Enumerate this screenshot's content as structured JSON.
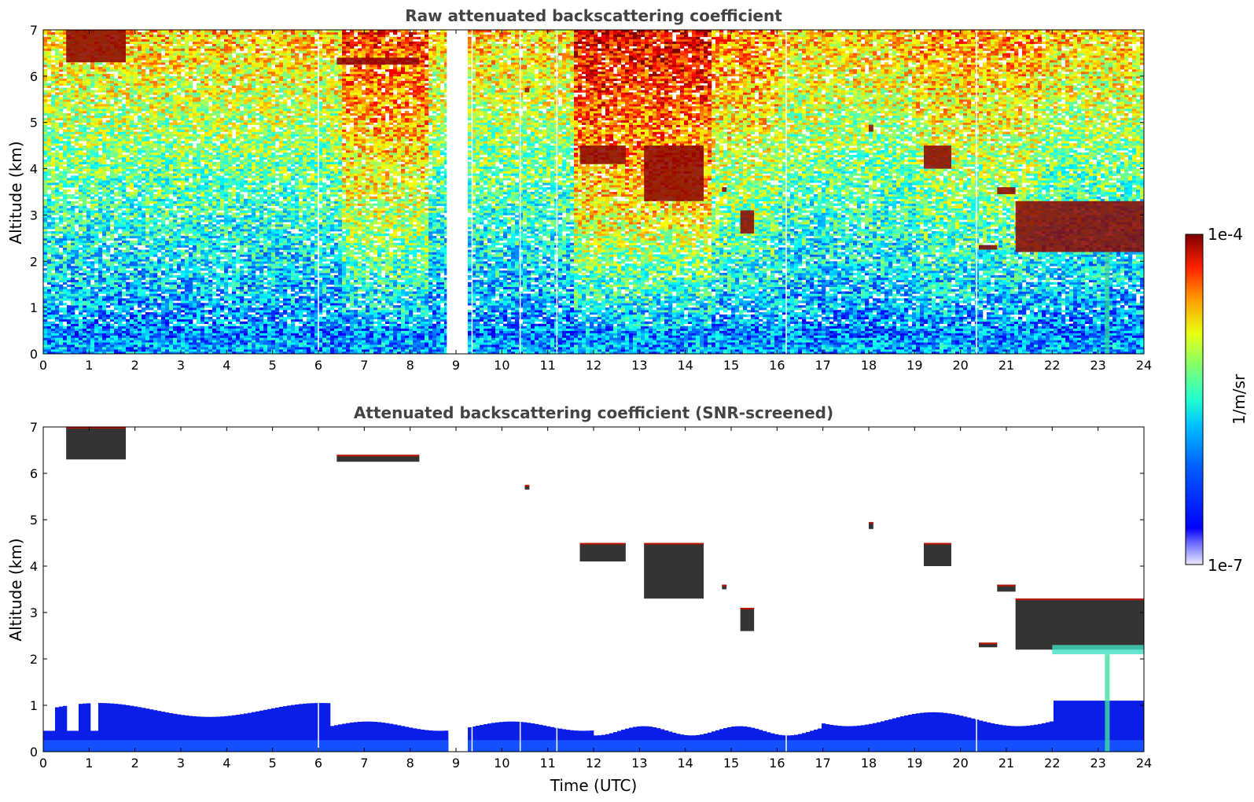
{
  "chart_data": [
    {
      "type": "heatmap",
      "title": "Raw attenuated backscattering coefficient",
      "ylabel": "Altitude (km)",
      "xlabel": "",
      "xlim": [
        0,
        24
      ],
      "ylim": [
        0,
        7
      ],
      "xticks": [
        0,
        1,
        2,
        3,
        4,
        5,
        6,
        7,
        8,
        9,
        10,
        11,
        12,
        13,
        14,
        15,
        16,
        17,
        18,
        19,
        20,
        21,
        22,
        23,
        24
      ],
      "yticks": [
        0,
        1,
        2,
        3,
        4,
        5,
        6,
        7
      ],
      "data_gap_utc": [
        8.8,
        9.25
      ],
      "cloud_layers": [
        {
          "t": [
            0.5,
            1.8
          ],
          "alt_km": [
            6.3,
            7.0
          ]
        },
        {
          "t": [
            6.4,
            8.2
          ],
          "alt_km": [
            6.25,
            6.4
          ]
        },
        {
          "t": [
            10.5,
            10.6
          ],
          "alt_km": [
            5.65,
            5.75
          ]
        },
        {
          "t": [
            11.7,
            12.7
          ],
          "alt_km": [
            4.1,
            4.5
          ]
        },
        {
          "t": [
            13.1,
            14.4
          ],
          "alt_km": [
            3.3,
            4.5
          ]
        },
        {
          "t": [
            14.8,
            14.9
          ],
          "alt_km": [
            3.5,
            3.6
          ]
        },
        {
          "t": [
            15.2,
            15.5
          ],
          "alt_km": [
            2.6,
            3.1
          ]
        },
        {
          "t": [
            18.0,
            18.1
          ],
          "alt_km": [
            4.8,
            4.95
          ]
        },
        {
          "t": [
            19.2,
            19.8
          ],
          "alt_km": [
            4.0,
            4.5
          ]
        },
        {
          "t": [
            20.4,
            20.8
          ],
          "alt_km": [
            2.25,
            2.35
          ]
        },
        {
          "t": [
            20.8,
            21.2
          ],
          "alt_km": [
            3.45,
            3.6
          ]
        },
        {
          "t": [
            21.2,
            24.0
          ],
          "alt_km": [
            2.2,
            3.3
          ]
        }
      ]
    },
    {
      "type": "heatmap",
      "title": "Attenuated backscattering coefficient (SNR-screened)",
      "ylabel": "Altitude (km)",
      "xlabel": "Time (UTC)",
      "xlim": [
        0,
        24
      ],
      "ylim": [
        0,
        7
      ],
      "xticks": [
        0,
        1,
        2,
        3,
        4,
        5,
        6,
        7,
        8,
        9,
        10,
        11,
        12,
        13,
        14,
        15,
        16,
        17,
        18,
        19,
        20,
        21,
        22,
        23,
        24
      ],
      "yticks": [
        0,
        1,
        2,
        3,
        4,
        5,
        6,
        7
      ]
    }
  ],
  "colorbar": {
    "label": "1/m/sr",
    "max_label": "1e-4",
    "min_label": "1e-7",
    "scale": "log",
    "colormap": "jet"
  }
}
